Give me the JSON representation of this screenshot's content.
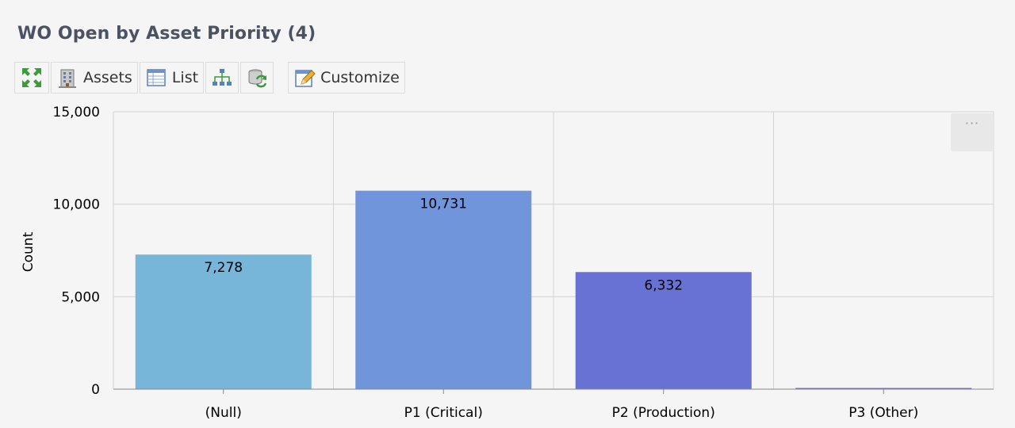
{
  "header": {
    "title": "WO Open by Asset Priority (4)"
  },
  "toolbar": {
    "expand_icon": "expand-arrows-icon",
    "assets_label": "Assets",
    "assets_icon": "building-icon",
    "list_label": "List",
    "list_icon": "table-list-icon",
    "hierarchy_icon": "hierarchy-icon",
    "refresh_icon": "refresh-data-icon",
    "customize_label": "Customize",
    "customize_icon": "customize-edit-icon"
  },
  "menu": {
    "label": "···"
  },
  "colors": {
    "bar_null": "#77b5d9",
    "bar_p1": "#7195db",
    "bar_p2": "#6872d4",
    "bar_p3": "#6a5fcf",
    "grid": "#d4d4d4"
  },
  "chart_data": {
    "type": "bar",
    "title": "WO Open by Asset Priority (4)",
    "xlabel": "",
    "ylabel": "Count",
    "ylim": [
      0,
      15000
    ],
    "yticks": [
      0,
      5000,
      10000,
      15000
    ],
    "ytick_labels": [
      "0",
      "5,000",
      "10,000",
      "15,000"
    ],
    "categories": [
      "(Null)",
      "P1 (Critical)",
      "P2 (Production)",
      "P3 (Other)"
    ],
    "values": [
      7278,
      10731,
      6332,
      30
    ],
    "data_labels": [
      "7,278",
      "10,731",
      "6,332",
      ""
    ],
    "grid": true,
    "legend": "none"
  }
}
